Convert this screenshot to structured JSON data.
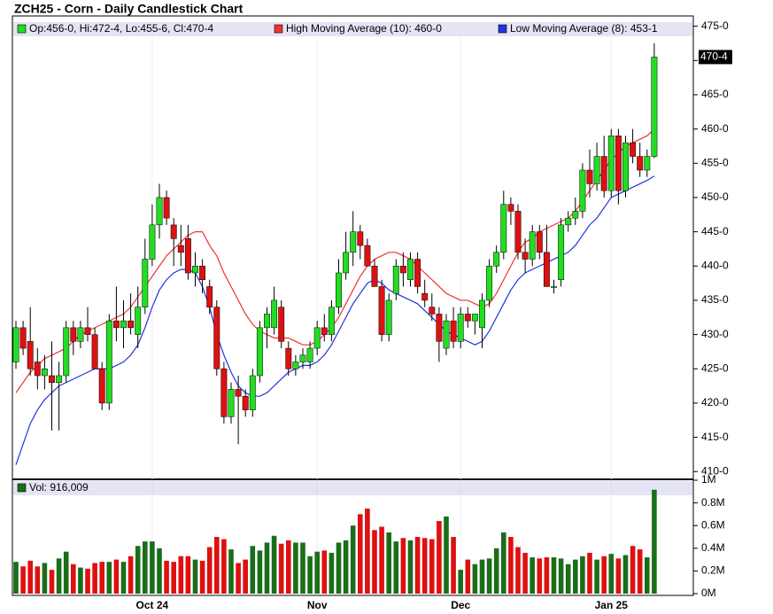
{
  "chart_data": {
    "type": "candlestick",
    "title": "ZCH25 - Corn - Daily Candlestick Chart",
    "ohlc_legend": "Op:456-0, Hi:472-4, Lo:455-6, Cl:470-4",
    "last_price_label": "470-4",
    "up_color": "#22dd22",
    "down_color": "#dd1111",
    "categories": [
      null,
      null,
      null,
      null,
      null,
      null,
      null,
      null,
      null,
      null,
      null,
      null,
      null,
      null,
      null,
      null,
      null,
      null,
      null,
      "Oct 24",
      null,
      null,
      null,
      null,
      null,
      null,
      null,
      null,
      null,
      null,
      null,
      null,
      null,
      null,
      null,
      null,
      null,
      null,
      null,
      null,
      null,
      null,
      "Nov",
      null,
      null,
      null,
      null,
      null,
      null,
      null,
      null,
      null,
      null,
      null,
      null,
      null,
      null,
      null,
      null,
      null,
      null,
      null,
      "Dec",
      null,
      null,
      null,
      null,
      null,
      null,
      null,
      null,
      null,
      null,
      null,
      null,
      null,
      null,
      null,
      null,
      null,
      null,
      null,
      null,
      "Jan 25",
      null,
      null,
      null,
      null,
      null,
      null
    ],
    "open": [
      426,
      431,
      429,
      426,
      424,
      424,
      423,
      424,
      431,
      429,
      431,
      430,
      425,
      420,
      432,
      431,
      432,
      430,
      434,
      441,
      446,
      450,
      446,
      443,
      444,
      439,
      440,
      437,
      434,
      425,
      418,
      422,
      421,
      419,
      424,
      431,
      431,
      434,
      428,
      425,
      426,
      426,
      428,
      431,
      430,
      434,
      439,
      442,
      445,
      443,
      440,
      437,
      430,
      436,
      440,
      438,
      441,
      436,
      434,
      433,
      428,
      432,
      429,
      433,
      432,
      431,
      435,
      440,
      442,
      449,
      448,
      442,
      441,
      445,
      442,
      437,
      438,
      446,
      447,
      448,
      454,
      452,
      456,
      451,
      459,
      451,
      458,
      456,
      454,
      456
    ],
    "high": [
      432,
      432,
      434,
      428,
      427,
      429,
      426,
      432,
      432,
      432,
      434,
      431,
      426,
      433,
      437,
      435,
      436,
      437,
      444,
      449,
      452,
      451,
      447,
      446,
      446,
      442,
      441,
      438,
      435,
      426,
      423,
      424,
      422,
      425,
      432,
      434,
      437,
      435,
      429,
      427,
      428,
      429,
      432,
      433,
      435,
      441,
      445,
      448,
      446,
      444,
      441,
      438,
      436,
      441,
      442,
      442,
      442,
      438,
      436,
      434,
      433,
      434,
      434,
      434,
      433,
      436,
      441,
      443,
      451,
      450,
      449,
      444,
      446,
      446,
      446,
      438,
      447,
      448,
      450,
      455,
      457,
      458,
      459,
      460,
      460,
      459,
      460,
      458,
      457,
      472.5
    ],
    "low": [
      425,
      427,
      424,
      422,
      422,
      416,
      416,
      423,
      427,
      428,
      429,
      425,
      419,
      419,
      429,
      428,
      430,
      428,
      433,
      440,
      444,
      446,
      440,
      440,
      438,
      437,
      436,
      433,
      424,
      417,
      417,
      414,
      418,
      418,
      423,
      428,
      430,
      428,
      424,
      424,
      425,
      425,
      427,
      429,
      429,
      433,
      438,
      440,
      441,
      440,
      437,
      429,
      429,
      435,
      437,
      437,
      436,
      434,
      432,
      426,
      427,
      428,
      428,
      431,
      430,
      428,
      434,
      439,
      441,
      446,
      441,
      439,
      440,
      441,
      437,
      436,
      437,
      445,
      446,
      447,
      450,
      451,
      450,
      450,
      449,
      450,
      455,
      453,
      453,
      455.75
    ],
    "close": [
      431,
      428,
      425,
      424,
      425,
      423,
      424,
      431,
      429,
      431,
      430,
      425,
      420,
      432,
      431,
      432,
      431,
      434,
      441,
      446,
      450,
      447,
      444,
      442,
      439,
      440,
      438,
      434,
      425,
      418,
      422,
      421,
      419,
      424,
      431,
      433,
      435,
      429,
      425,
      426,
      427,
      428,
      431,
      430,
      434,
      439,
      442,
      445,
      443,
      440,
      437,
      430,
      435,
      440,
      439,
      441,
      437,
      435,
      433,
      429,
      432,
      429,
      433,
      432,
      433,
      435,
      440,
      442,
      449,
      448,
      442,
      441,
      445,
      442,
      437,
      437,
      446,
      447,
      448,
      454,
      452,
      456,
      451,
      459,
      451,
      458,
      456,
      454,
      456,
      470.5
    ],
    "series": [
      {
        "name": "High Moving Average (10): 460-0",
        "color": "#ee3333",
        "values": [
          421.5,
          423,
          424.5,
          425.5,
          426.5,
          427,
          427.5,
          428,
          429,
          430,
          430.5,
          431,
          431.5,
          432,
          432.5,
          433,
          434,
          435.5,
          437,
          438.5,
          440,
          441.5,
          442.5,
          443.5,
          444.5,
          445,
          445,
          443,
          441.5,
          439,
          437,
          435,
          433,
          431.5,
          430.5,
          430,
          429.5,
          429.5,
          429.5,
          429,
          428.5,
          428.5,
          429,
          430,
          431,
          432.5,
          434.5,
          436.5,
          438.5,
          440,
          441,
          441.5,
          442,
          442,
          441.5,
          441,
          440,
          439,
          438,
          437,
          436,
          435.5,
          435,
          435,
          434.5,
          434,
          434.5,
          436,
          438,
          440,
          442,
          443.5,
          444,
          445,
          445.5,
          446,
          446.5,
          447,
          448,
          449.5,
          451,
          452.5,
          454,
          455.5,
          456.5,
          457.5,
          458,
          458.5,
          459,
          460
        ]
      },
      {
        "name": "Low Moving Average (8): 453-1",
        "color": "#2233dd",
        "values": [
          411,
          414,
          417,
          419,
          420.5,
          421.5,
          422.5,
          423,
          423.5,
          424,
          424.5,
          425,
          425,
          425,
          425.5,
          426,
          427,
          428.5,
          431,
          434,
          436.5,
          438,
          439,
          439.5,
          439.5,
          439,
          437,
          434,
          430,
          427,
          424.5,
          422.5,
          421.5,
          421,
          421,
          421.5,
          422.5,
          423.5,
          424.5,
          425,
          425.5,
          425.5,
          426,
          427,
          428.5,
          430.5,
          432.5,
          434.5,
          436,
          437.5,
          438,
          437.5,
          436.5,
          436,
          435.5,
          435,
          434.5,
          433.5,
          432.5,
          431.5,
          430.5,
          430,
          429.5,
          429,
          428.5,
          429,
          430.5,
          432.5,
          434.5,
          436.5,
          438,
          439,
          439.5,
          440,
          440.5,
          441,
          441.5,
          442,
          443,
          444.5,
          446,
          447,
          448.5,
          450,
          450.5,
          451,
          451.5,
          452,
          452.5,
          453.125
        ]
      }
    ],
    "ylim": [
      409,
      476.5
    ],
    "yticks": [
      {
        "value": 410,
        "label": "410-0"
      },
      {
        "value": 415,
        "label": "415-0"
      },
      {
        "value": 420,
        "label": "420-0"
      },
      {
        "value": 425,
        "label": "425-0"
      },
      {
        "value": 430,
        "label": "430-0"
      },
      {
        "value": 435,
        "label": "435-0"
      },
      {
        "value": 440,
        "label": "440-0"
      },
      {
        "value": 445,
        "label": "445-0"
      },
      {
        "value": 450,
        "label": "450-0"
      },
      {
        "value": 455,
        "label": "455-0"
      },
      {
        "value": 460,
        "label": "460-0"
      },
      {
        "value": 465,
        "label": "465-0"
      },
      {
        "value": 470,
        "label": "470-0"
      },
      {
        "value": 475,
        "label": "475-0"
      }
    ],
    "volume_legend": "Vol: 916,009",
    "volume_color": "#1a6e1a",
    "volume": [
      280000,
      240000,
      290000,
      240000,
      270000,
      210000,
      310000,
      370000,
      260000,
      230000,
      220000,
      270000,
      280000,
      280000,
      300000,
      280000,
      330000,
      420000,
      460000,
      460000,
      400000,
      290000,
      280000,
      330000,
      330000,
      300000,
      290000,
      410000,
      500000,
      480000,
      390000,
      270000,
      300000,
      420000,
      380000,
      450000,
      510000,
      440000,
      470000,
      450000,
      450000,
      330000,
      370000,
      380000,
      360000,
      450000,
      470000,
      600000,
      700000,
      750000,
      560000,
      590000,
      540000,
      460000,
      490000,
      470000,
      500000,
      490000,
      480000,
      640000,
      680000,
      500000,
      210000,
      300000,
      260000,
      300000,
      310000,
      400000,
      540000,
      500000,
      410000,
      360000,
      320000,
      310000,
      320000,
      320000,
      310000,
      260000,
      300000,
      330000,
      360000,
      300000,
      330000,
      350000,
      310000,
      340000,
      420000,
      390000,
      320000,
      916009
    ],
    "vlim": [
      0,
      1000000
    ],
    "vticks": [
      {
        "value": 0,
        "label": "0M"
      },
      {
        "value": 200000,
        "label": "0.2M"
      },
      {
        "value": 400000,
        "label": "0.4M"
      },
      {
        "value": 600000,
        "label": "0.6M"
      },
      {
        "value": 800000,
        "label": "0.8M"
      },
      {
        "value": 1000000,
        "label": "1M"
      }
    ]
  }
}
